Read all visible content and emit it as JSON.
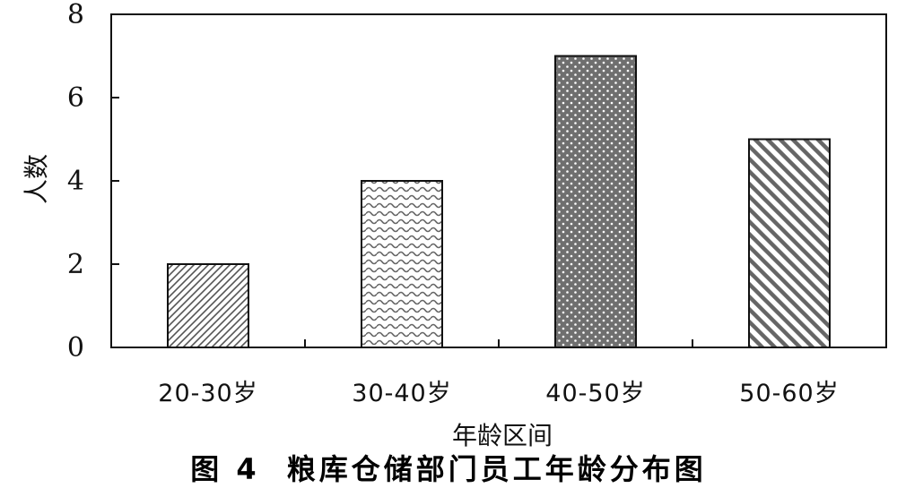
{
  "chart_data": {
    "type": "bar",
    "categories": [
      "20-30岁",
      "30-40岁",
      "40-50岁",
      "50-60岁"
    ],
    "values": [
      2,
      4,
      7,
      5
    ],
    "title": "",
    "xlabel": "年龄区间",
    "ylabel": "人数",
    "ylim": [
      0,
      8
    ],
    "yticks": [
      0,
      2,
      4,
      6,
      8
    ],
    "grid": false,
    "legend": "none"
  },
  "caption": {
    "figure_number": "图 4",
    "text": "粮库仓储部门员工年龄分布图"
  }
}
